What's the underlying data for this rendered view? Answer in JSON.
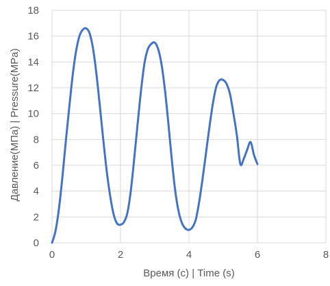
{
  "chart_data": {
    "type": "line",
    "title": "",
    "xlabel": "Время (с) | Time (s)",
    "ylabel": "Давление(МПа) | Pressure(MPa)",
    "xlim": [
      0,
      8
    ],
    "ylim": [
      0,
      18
    ],
    "xticks": [
      0,
      2,
      4,
      6,
      8
    ],
    "yticks": [
      0,
      2,
      4,
      6,
      8,
      10,
      12,
      14,
      16,
      18
    ],
    "grid": true,
    "legend": "none",
    "series": [
      {
        "color": "#4472c4",
        "x": [
          0,
          0.1,
          0.2,
          0.3,
          0.4,
          0.5,
          0.6,
          0.7,
          0.8,
          0.9,
          1.0,
          1.1,
          1.2,
          1.3,
          1.4,
          1.5,
          1.6,
          1.7,
          1.8,
          1.9,
          2.0,
          2.1,
          2.2,
          2.3,
          2.4,
          2.5,
          2.6,
          2.7,
          2.8,
          2.9,
          3.0,
          3.1,
          3.2,
          3.3,
          3.4,
          3.5,
          3.6,
          3.7,
          3.8,
          3.9,
          4.0,
          4.1,
          4.2,
          4.3,
          4.4,
          4.5,
          4.6,
          4.7,
          4.8,
          4.9,
          5.0,
          5.1,
          5.2,
          5.3,
          5.4,
          5.5,
          5.6,
          5.7,
          5.8,
          5.9,
          6.0
        ],
        "y": [
          0,
          0.9,
          2.6,
          5.0,
          7.8,
          10.4,
          12.9,
          14.8,
          16.0,
          16.5,
          16.6,
          16.2,
          15.0,
          13.0,
          10.5,
          7.9,
          5.5,
          3.6,
          2.2,
          1.5,
          1.4,
          1.6,
          2.3,
          4.0,
          6.5,
          9.2,
          11.8,
          13.9,
          15.0,
          15.4,
          15.5,
          15.0,
          13.8,
          11.8,
          9.2,
          6.4,
          4.0,
          2.4,
          1.5,
          1.1,
          1.0,
          1.2,
          1.8,
          3.2,
          5.0,
          7.0,
          9.0,
          10.8,
          12.1,
          12.6,
          12.6,
          12.3,
          11.5,
          10.0,
          8.3,
          6.1,
          6.5,
          7.2,
          7.8,
          6.8,
          6.1
        ]
      }
    ]
  }
}
